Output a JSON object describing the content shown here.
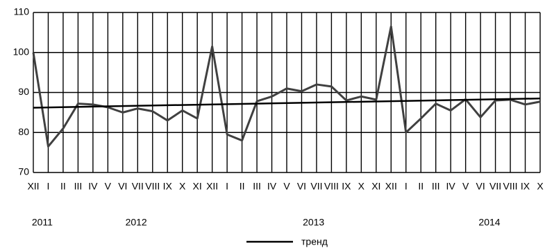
{
  "chart_data": {
    "type": "line",
    "categories": [
      "XII",
      "I",
      "II",
      "III",
      "IV",
      "V",
      "VI",
      "VII",
      "VIII",
      "IX",
      "X",
      "XI",
      "XII",
      "I",
      "II",
      "III",
      "IV",
      "V",
      "VI",
      "VII",
      "VIII",
      "IX",
      "X",
      "XI",
      "XII",
      "I",
      "II",
      "III",
      "IV",
      "V",
      "VI",
      "VII",
      "VIII",
      "IX",
      "X"
    ],
    "years": [
      "2011",
      "2012",
      "2013",
      "2014"
    ],
    "values": [
      100,
      76.5,
      81,
      87.2,
      87,
      86.3,
      85,
      86,
      85.3,
      83,
      85.5,
      83.5,
      101.5,
      79.5,
      78,
      87.8,
      89,
      91,
      90.3,
      92,
      91.5,
      88,
      89,
      88.2,
      106.5,
      80,
      83.5,
      87.2,
      85.5,
      88.3,
      83.8,
      88,
      88.2,
      87,
      87.7
    ],
    "color": "#404040",
    "trend": {
      "name": "тренд",
      "start": 86.2,
      "end": 88.5,
      "color": "#000000"
    },
    "ylim": [
      70,
      110
    ],
    "yticks": [
      70,
      80,
      90,
      100,
      110
    ],
    "grid": true
  }
}
